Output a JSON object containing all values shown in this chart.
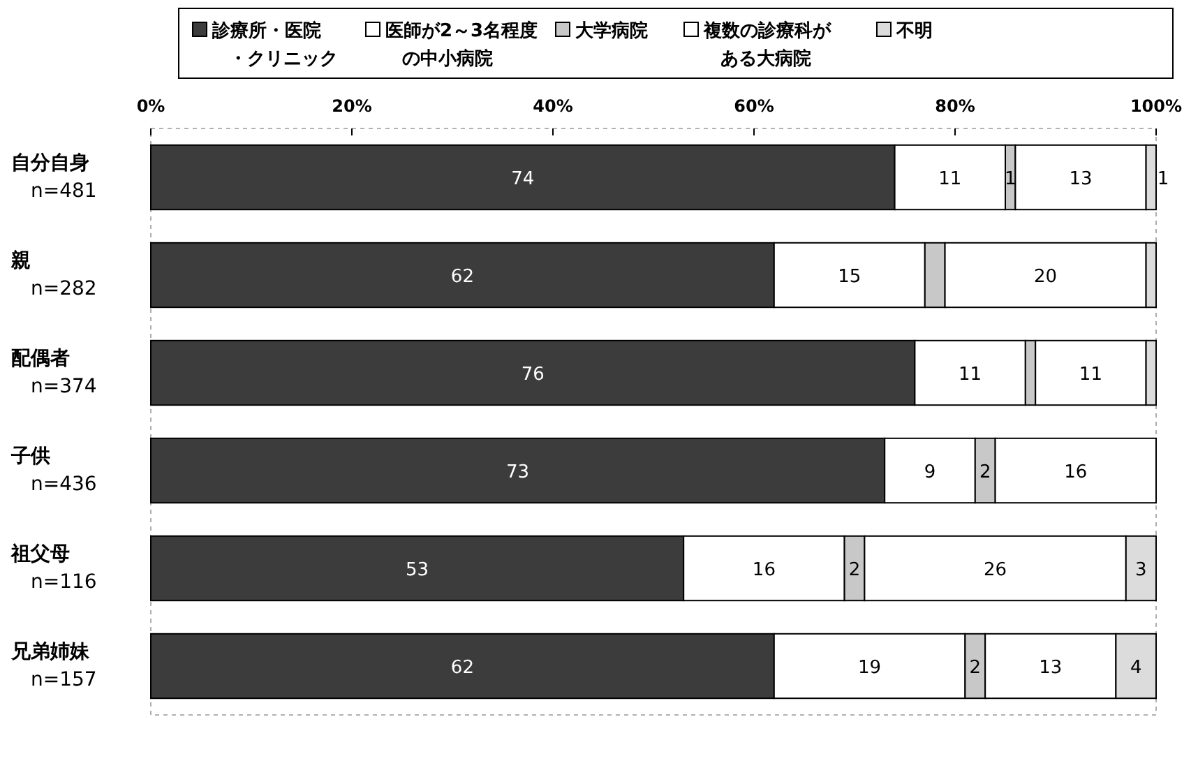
{
  "chart_data": {
    "type": "bar",
    "orientation": "horizontal",
    "stacked": true,
    "legend": "top",
    "categories": [
      "自分自身 n=481",
      "親 n=282",
      "配偶者 n=374",
      "子供 n=436",
      "祖父母 n=116",
      "兄弟姉妹 n=157"
    ],
    "xlim": [
      0,
      100
    ],
    "xticks": [
      {
        "value": 0,
        "label": "0%"
      },
      {
        "value": 20,
        "label": "20%"
      },
      {
        "value": 40,
        "label": "40%"
      },
      {
        "value": 60,
        "label": "60%"
      },
      {
        "value": 80,
        "label": "80%"
      },
      {
        "value": 100,
        "label": "100%"
      }
    ],
    "series": [
      {
        "name": "診療所・医院・クリニック",
        "color": "#3c3c3c",
        "values": [
          74,
          62,
          76,
          73,
          53,
          62
        ],
        "value_labels": [
          "74",
          "62",
          "76",
          "73",
          "53",
          "62"
        ]
      },
      {
        "name": "医師が2～3名程度の中小病院",
        "color": "#ffffff",
        "values": [
          11,
          15,
          11,
          9,
          16,
          19
        ],
        "value_labels": [
          "11",
          "15",
          "11",
          "9",
          "16",
          "19"
        ]
      },
      {
        "name": "大学病院",
        "color": "#c8c8c8",
        "values": [
          1,
          2,
          1,
          2,
          2,
          2
        ],
        "value_labels": [
          "1",
          null,
          null,
          "2",
          "2",
          "2"
        ]
      },
      {
        "name": "複数の診療科がある大病院",
        "color": "#ffffff",
        "values": [
          13,
          20,
          11,
          16,
          26,
          13
        ],
        "value_labels": [
          "13",
          "20",
          "11",
          "16",
          "26",
          "13"
        ]
      },
      {
        "name": "不明",
        "color": "#dcdcdc",
        "values": [
          1,
          1,
          1,
          null,
          3,
          4
        ],
        "value_labels": [
          "1",
          null,
          null,
          null,
          "3",
          "4"
        ]
      }
    ]
  }
}
